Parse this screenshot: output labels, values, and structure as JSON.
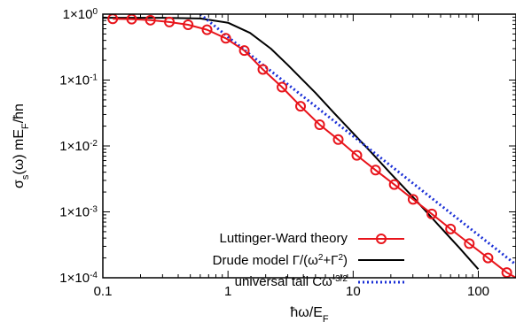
{
  "chart_data": {
    "type": "line",
    "x_scale": "log",
    "y_scale": "log",
    "xlim": [
      0.1,
      200
    ],
    "ylim": [
      0.0001,
      1
    ],
    "grid": false,
    "legend_position": "bottom-right",
    "xlabel": {
      "base": "ħω/E",
      "sub": "F"
    },
    "ylabel": {
      "pre": "σ",
      "s": "s",
      "mid": "(ω) mE",
      "f": "F",
      "post": "/ħn"
    },
    "x_tick_labels": [
      {
        "value": 0.1,
        "label": "0.1"
      },
      {
        "value": 1,
        "label": "1"
      },
      {
        "value": 10,
        "label": "10"
      },
      {
        "value": 100,
        "label": "100"
      }
    ],
    "y_tick_labels": [
      {
        "value": 1,
        "base": "1×10",
        "exp": "0"
      },
      {
        "value": 0.1,
        "base": "1×10",
        "exp": "-1"
      },
      {
        "value": 0.01,
        "base": "1×10",
        "exp": "-2"
      },
      {
        "value": 0.001,
        "base": "1×10",
        "exp": "-3"
      },
      {
        "value": 0.0001,
        "base": "1×10",
        "exp": "-4"
      }
    ],
    "series": [
      {
        "name": "Luttinger-Ward theory",
        "color": "#e8141b",
        "style": "line-with-open-circles",
        "x": [
          0.12,
          0.17,
          0.24,
          0.34,
          0.48,
          0.68,
          0.96,
          1.35,
          1.9,
          2.7,
          3.8,
          5.4,
          7.6,
          10.7,
          15.1,
          21.3,
          30.1,
          42.5,
          60.0,
          84.7,
          119.5,
          168.8,
          200
        ],
        "y": [
          0.85,
          0.84,
          0.81,
          0.76,
          0.69,
          0.58,
          0.43,
          0.28,
          0.145,
          0.078,
          0.04,
          0.021,
          0.0125,
          0.0072,
          0.0043,
          0.0026,
          0.00155,
          0.00093,
          0.00055,
          0.00033,
          0.0002,
          0.00012,
          0.0001
        ],
        "markers_x": [
          0.12,
          0.17,
          0.24,
          0.34,
          0.48,
          0.68,
          0.96,
          1.35,
          1.9,
          2.7,
          3.8,
          5.4,
          7.6,
          10.7,
          15.1,
          21.3,
          30.1,
          42.5,
          60.0,
          84.7,
          119.5,
          168.8
        ],
        "markers_y": [
          0.85,
          0.84,
          0.81,
          0.76,
          0.69,
          0.58,
          0.43,
          0.28,
          0.145,
          0.078,
          0.04,
          0.021,
          0.0125,
          0.0072,
          0.0043,
          0.0026,
          0.00155,
          0.00093,
          0.00055,
          0.00033,
          0.0002,
          0.00012
        ]
      },
      {
        "name": "Drude model Γ/(ω²+Γ²)",
        "name_main": "Drude model Γ/(ω",
        "name_sup1": "2",
        "name_mid": "+Γ",
        "name_sup2": "2",
        "name_end": ")",
        "color": "#000000",
        "style": "line",
        "x": [
          0.1,
          0.3,
          0.6,
          1.0,
          1.5,
          2.2,
          3.0,
          5.0,
          7.0,
          10.0,
          14.0,
          20.0,
          30.0,
          50.0,
          70.0,
          100.0
        ],
        "y": [
          0.88,
          0.88,
          0.86,
          0.74,
          0.52,
          0.3,
          0.17,
          0.064,
          0.032,
          0.0156,
          0.0079,
          0.0038,
          0.00168,
          0.00058,
          0.00029,
          0.000135
        ]
      },
      {
        "name": "universal tail Cω⁻³ᐟ²",
        "name_main": "universal tail Cω",
        "name_sup": "-3/2",
        "color": "#1a2fd6",
        "style": "dotted",
        "x": [
          0.6,
          1.0,
          2.0,
          5.0,
          10.0,
          20.0,
          50.0,
          100.0,
          200.0
        ],
        "y": [
          1.0,
          0.45,
          0.158,
          0.04,
          0.0141,
          0.005,
          0.00126,
          0.000447,
          0.000158
        ]
      }
    ]
  }
}
